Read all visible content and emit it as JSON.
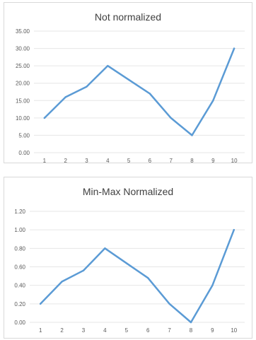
{
  "chart_data": [
    {
      "type": "line",
      "title": "Not normalized",
      "categories": [
        "1",
        "2",
        "3",
        "4",
        "5",
        "6",
        "7",
        "8",
        "9",
        "10"
      ],
      "series": [
        {
          "values": [
            10,
            16,
            19,
            25,
            21,
            17,
            10,
            5,
            15,
            30
          ]
        }
      ],
      "yticks": [
        "0.00",
        "5.00",
        "10.00",
        "15.00",
        "20.00",
        "25.00",
        "30.00",
        "35.00"
      ],
      "ylim": [
        0,
        35
      ],
      "grid": true,
      "color": "#5b9bd5"
    },
    {
      "type": "line",
      "title": "Min-Max Normalized",
      "categories": [
        "1",
        "2",
        "3",
        "4",
        "5",
        "6",
        "7",
        "8",
        "9",
        "10"
      ],
      "series": [
        {
          "values": [
            0.2,
            0.44,
            0.56,
            0.8,
            0.64,
            0.48,
            0.2,
            0,
            0.4,
            1.0
          ]
        }
      ],
      "yticks": [
        "0.00",
        "0.20",
        "0.40",
        "0.60",
        "0.80",
        "1.00",
        "1.20"
      ],
      "ylim": [
        0,
        1.2
      ],
      "grid": true,
      "color": "#5b9bd5"
    }
  ]
}
